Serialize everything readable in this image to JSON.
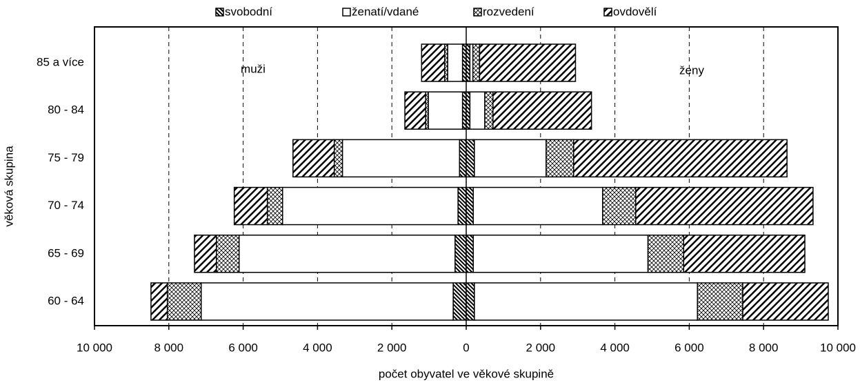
{
  "chart_data": {
    "type": "pyramid",
    "y_label": "věková skupina",
    "x_label": "počet obyvatel ve věkové skupině",
    "annotations": [
      "muži",
      "ženy"
    ],
    "categories": [
      "85 a více",
      "80 - 84",
      "75 - 79",
      "70 - 74",
      "65 - 69",
      "60 - 64"
    ],
    "series": [
      {
        "name": "svobodní",
        "color": "#000000",
        "pattern": "dense-hatch",
        "men": [
          100,
          100,
          180,
          220,
          300,
          350
        ],
        "women": [
          100,
          100,
          220,
          190,
          190,
          220
        ]
      },
      {
        "name": "ženatí/vdané",
        "color": "#000000",
        "pattern": "none",
        "men": [
          400,
          920,
          3150,
          4720,
          5810,
          6780
        ],
        "women": [
          80,
          400,
          1930,
          3480,
          4700,
          6000
        ]
      },
      {
        "name": "rozvedení",
        "color": "#000000",
        "pattern": "cross",
        "men": [
          80,
          70,
          220,
          410,
          610,
          910
        ],
        "women": [
          180,
          220,
          740,
          890,
          960,
          1220
        ]
      },
      {
        "name": "ovdovělí",
        "color": "#000000",
        "pattern": "wide-hatch",
        "men": [
          620,
          560,
          1110,
          890,
          590,
          440
        ],
        "women": [
          2580,
          2650,
          5740,
          4770,
          3260,
          2300
        ]
      }
    ],
    "xlim": [
      -10000,
      10000
    ],
    "xticks": [
      {
        "value": -10000,
        "label": "10 000"
      },
      {
        "value": -8000,
        "label": "8 000"
      },
      {
        "value": -6000,
        "label": "6 000"
      },
      {
        "value": -4000,
        "label": "4 000"
      },
      {
        "value": -2000,
        "label": "2 000"
      },
      0,
      {
        "value": 2000,
        "label": "2 000"
      },
      {
        "value": 4000,
        "label": "4 000"
      },
      {
        "value": 6000,
        "label": "6 000"
      },
      {
        "value": 8000,
        "label": "8 000"
      },
      {
        "value": 10000,
        "label": "10 000"
      }
    ],
    "grid": true
  }
}
